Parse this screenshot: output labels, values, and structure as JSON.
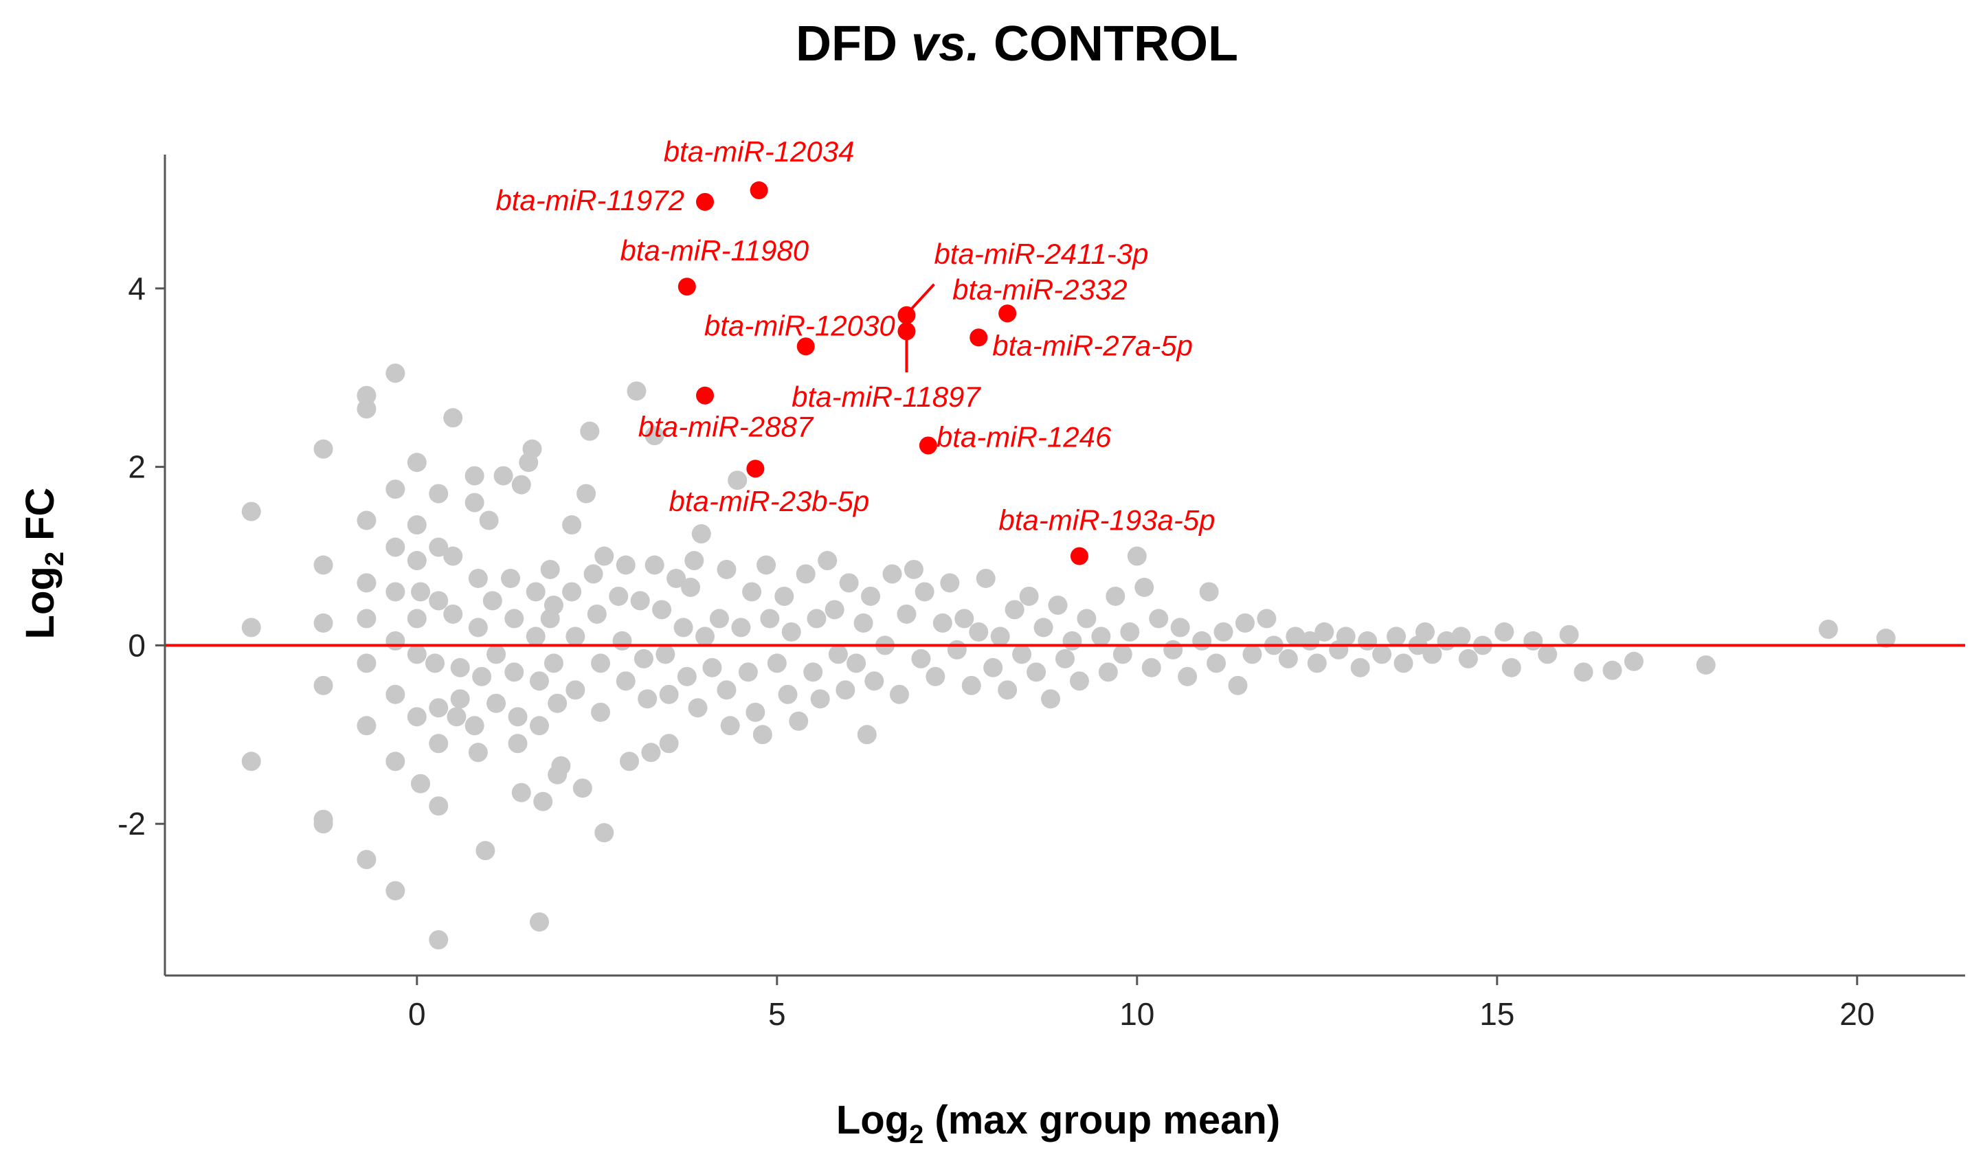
{
  "chart_data": {
    "type": "scatter",
    "title": "DFD vs. CONTROL",
    "title_parts": {
      "left": "DFD ",
      "middle": "vs.",
      "right": " CONTROL"
    },
    "xlabel_main": "Log",
    "xlabel_sub": "2",
    "xlabel_rest": " (max group mean)",
    "ylabel_main": "Log",
    "ylabel_sub": "2",
    "ylabel_rest": " FC",
    "xlim": [
      -3.5,
      21.5
    ],
    "ylim": [
      -3.7,
      5.5
    ],
    "xticks": [
      0,
      5,
      10,
      15,
      20
    ],
    "yticks": [
      -2,
      0,
      2,
      4
    ],
    "reference_line": {
      "y": 0,
      "color": "#ff0000"
    },
    "background_point_color": "#c8c8c8",
    "highlight_color": "#ff0000",
    "grid": false,
    "legend": "none",
    "highlighted": [
      {
        "label": "bta-miR-12034",
        "x": 4.75,
        "y": 5.1
      },
      {
        "label": "bta-miR-11972",
        "x": 4.0,
        "y": 4.97
      },
      {
        "label": "bta-miR-11980",
        "x": 3.75,
        "y": 4.02
      },
      {
        "label": "bta-miR-2411-3p",
        "x": 6.8,
        "y": 3.7
      },
      {
        "label": "bta-miR-2332",
        "x": 8.2,
        "y": 3.72
      },
      {
        "label": "bta-miR-12030",
        "x": 5.4,
        "y": 3.35
      },
      {
        "label": "bta-miR-11897",
        "x": 6.8,
        "y": 3.52
      },
      {
        "label": "bta-miR-27a-5p",
        "x": 7.8,
        "y": 3.45
      },
      {
        "label": "bta-miR-2887",
        "x": 4.0,
        "y": 2.8
      },
      {
        "label": "bta-miR-1246",
        "x": 7.1,
        "y": 2.24
      },
      {
        "label": "bta-miR-23b-5p",
        "x": 4.7,
        "y": 1.98
      },
      {
        "label": "bta-miR-193a-5p",
        "x": 9.2,
        "y": 1.0
      }
    ],
    "background_points": [
      [
        -2.3,
        1.5
      ],
      [
        -2.3,
        0.2
      ],
      [
        -2.3,
        -1.3
      ],
      [
        -1.3,
        2.2
      ],
      [
        -1.3,
        0.9
      ],
      [
        -1.3,
        0.25
      ],
      [
        -1.3,
        -0.45
      ],
      [
        -1.3,
        -1.95
      ],
      [
        -1.3,
        -2.0
      ],
      [
        -0.7,
        2.8
      ],
      [
        -0.7,
        2.65
      ],
      [
        -0.7,
        1.4
      ],
      [
        -0.7,
        0.7
      ],
      [
        -0.7,
        0.3
      ],
      [
        -0.7,
        -0.2
      ],
      [
        -0.7,
        -0.9
      ],
      [
        -0.7,
        -2.4
      ],
      [
        -0.3,
        3.05
      ],
      [
        -0.3,
        1.75
      ],
      [
        -0.3,
        1.1
      ],
      [
        -0.3,
        0.6
      ],
      [
        -0.3,
        0.05
      ],
      [
        -0.3,
        -0.55
      ],
      [
        -0.3,
        -1.3
      ],
      [
        -0.3,
        -2.75
      ],
      [
        0.0,
        2.05
      ],
      [
        0.0,
        1.35
      ],
      [
        0.0,
        0.95
      ],
      [
        0.05,
        0.6
      ],
      [
        0.0,
        0.3
      ],
      [
        0.0,
        -0.1
      ],
      [
        0.0,
        -0.8
      ],
      [
        0.05,
        -1.55
      ],
      [
        0.3,
        1.7
      ],
      [
        0.3,
        1.1
      ],
      [
        0.3,
        0.5
      ],
      [
        0.25,
        -0.2
      ],
      [
        0.3,
        -0.7
      ],
      [
        0.3,
        -1.1
      ],
      [
        0.3,
        -1.8
      ],
      [
        0.3,
        -3.3
      ],
      [
        0.5,
        2.55
      ],
      [
        0.5,
        1.0
      ],
      [
        0.5,
        0.35
      ],
      [
        0.6,
        -0.25
      ],
      [
        0.55,
        -0.8
      ],
      [
        0.6,
        -0.6
      ],
      [
        0.8,
        1.6
      ],
      [
        0.8,
        1.9
      ],
      [
        0.85,
        0.75
      ],
      [
        0.85,
        0.2
      ],
      [
        0.9,
        -0.35
      ],
      [
        0.8,
        -0.9
      ],
      [
        0.85,
        -1.2
      ],
      [
        0.95,
        -2.3
      ],
      [
        1.0,
        1.4
      ],
      [
        1.05,
        0.5
      ],
      [
        1.1,
        -0.1
      ],
      [
        1.1,
        -0.65
      ],
      [
        1.2,
        1.9
      ],
      [
        1.3,
        0.75
      ],
      [
        1.35,
        0.3
      ],
      [
        1.35,
        -0.3
      ],
      [
        1.4,
        -0.8
      ],
      [
        1.4,
        -1.1
      ],
      [
        1.45,
        1.8
      ],
      [
        1.45,
        -1.65
      ],
      [
        1.55,
        2.05
      ],
      [
        1.6,
        2.2
      ],
      [
        1.65,
        0.6
      ],
      [
        1.65,
        0.1
      ],
      [
        1.7,
        -0.4
      ],
      [
        1.7,
        -0.9
      ],
      [
        1.7,
        -3.1
      ],
      [
        1.75,
        -1.75
      ],
      [
        1.85,
        0.85
      ],
      [
        1.85,
        0.3
      ],
      [
        1.9,
        0.45
      ],
      [
        1.9,
        -0.2
      ],
      [
        1.95,
        -0.65
      ],
      [
        1.95,
        -1.45
      ],
      [
        2.0,
        -1.35
      ],
      [
        2.15,
        1.35
      ],
      [
        2.15,
        0.6
      ],
      [
        2.2,
        0.1
      ],
      [
        2.2,
        -0.5
      ],
      [
        2.3,
        -1.6
      ],
      [
        2.35,
        1.7
      ],
      [
        2.4,
        2.4
      ],
      [
        2.45,
        0.8
      ],
      [
        2.5,
        0.35
      ],
      [
        2.55,
        -0.2
      ],
      [
        2.55,
        -0.75
      ],
      [
        2.6,
        1.0
      ],
      [
        2.6,
        -2.1
      ],
      [
        2.8,
        0.55
      ],
      [
        2.85,
        0.05
      ],
      [
        2.9,
        -0.4
      ],
      [
        2.9,
        0.9
      ],
      [
        2.95,
        -1.3
      ],
      [
        3.05,
        2.85
      ],
      [
        3.1,
        0.5
      ],
      [
        3.15,
        -0.15
      ],
      [
        3.2,
        -0.6
      ],
      [
        3.25,
        -1.2
      ],
      [
        3.3,
        2.35
      ],
      [
        3.3,
        0.9
      ],
      [
        3.4,
        0.4
      ],
      [
        3.45,
        -0.1
      ],
      [
        3.5,
        -0.55
      ],
      [
        3.5,
        -1.1
      ],
      [
        3.6,
        0.75
      ],
      [
        3.7,
        0.2
      ],
      [
        3.75,
        -0.35
      ],
      [
        3.8,
        0.65
      ],
      [
        3.85,
        0.95
      ],
      [
        3.9,
        -0.7
      ],
      [
        3.95,
        1.25
      ],
      [
        4.0,
        0.1
      ],
      [
        4.1,
        -0.25
      ],
      [
        4.2,
        0.3
      ],
      [
        4.3,
        -0.5
      ],
      [
        4.3,
        0.85
      ],
      [
        4.35,
        -0.9
      ],
      [
        4.45,
        1.85
      ],
      [
        4.5,
        0.2
      ],
      [
        4.6,
        -0.3
      ],
      [
        4.65,
        0.6
      ],
      [
        4.7,
        -0.75
      ],
      [
        4.8,
        -1.0
      ],
      [
        4.85,
        0.9
      ],
      [
        4.9,
        0.3
      ],
      [
        5.0,
        -0.2
      ],
      [
        5.1,
        0.55
      ],
      [
        5.15,
        -0.55
      ],
      [
        5.2,
        0.15
      ],
      [
        5.3,
        -0.85
      ],
      [
        5.4,
        0.8
      ],
      [
        5.5,
        -0.3
      ],
      [
        5.55,
        0.3
      ],
      [
        5.6,
        -0.6
      ],
      [
        5.7,
        0.95
      ],
      [
        5.8,
        0.4
      ],
      [
        5.85,
        -0.1
      ],
      [
        5.95,
        -0.5
      ],
      [
        6.0,
        0.7
      ],
      [
        6.1,
        -0.2
      ],
      [
        6.2,
        0.25
      ],
      [
        6.25,
        -1.0
      ],
      [
        6.3,
        0.55
      ],
      [
        6.35,
        -0.4
      ],
      [
        6.5,
        0.0
      ],
      [
        6.6,
        0.8
      ],
      [
        6.7,
        -0.55
      ],
      [
        6.8,
        0.35
      ],
      [
        6.9,
        0.85
      ],
      [
        7.0,
        -0.15
      ],
      [
        7.05,
        0.6
      ],
      [
        7.2,
        -0.35
      ],
      [
        7.3,
        0.25
      ],
      [
        7.4,
        0.7
      ],
      [
        7.5,
        -0.05
      ],
      [
        7.6,
        0.3
      ],
      [
        7.7,
        -0.45
      ],
      [
        7.8,
        0.15
      ],
      [
        7.9,
        0.75
      ],
      [
        8.0,
        -0.25
      ],
      [
        8.1,
        0.1
      ],
      [
        8.2,
        -0.5
      ],
      [
        8.3,
        0.4
      ],
      [
        8.4,
        -0.1
      ],
      [
        8.5,
        0.55
      ],
      [
        8.6,
        -0.3
      ],
      [
        8.7,
        0.2
      ],
      [
        8.8,
        -0.6
      ],
      [
        8.9,
        0.45
      ],
      [
        9.0,
        -0.15
      ],
      [
        9.1,
        0.05
      ],
      [
        9.2,
        -0.4
      ],
      [
        9.3,
        0.3
      ],
      [
        9.5,
        0.1
      ],
      [
        9.6,
        -0.3
      ],
      [
        9.7,
        0.55
      ],
      [
        9.8,
        -0.1
      ],
      [
        9.9,
        0.15
      ],
      [
        10.0,
        1.0
      ],
      [
        10.1,
        0.65
      ],
      [
        10.2,
        -0.25
      ],
      [
        10.3,
        0.3
      ],
      [
        10.5,
        -0.05
      ],
      [
        10.6,
        0.2
      ],
      [
        10.7,
        -0.35
      ],
      [
        10.9,
        0.05
      ],
      [
        11.0,
        0.6
      ],
      [
        11.1,
        -0.2
      ],
      [
        11.2,
        0.15
      ],
      [
        11.4,
        -0.45
      ],
      [
        11.5,
        0.25
      ],
      [
        11.6,
        -0.1
      ],
      [
        11.8,
        0.3
      ],
      [
        11.9,
        0.0
      ],
      [
        12.1,
        -0.15
      ],
      [
        12.2,
        0.1
      ],
      [
        12.4,
        0.05
      ],
      [
        12.5,
        -0.2
      ],
      [
        12.6,
        0.15
      ],
      [
        12.8,
        -0.05
      ],
      [
        12.9,
        0.1
      ],
      [
        13.1,
        -0.25
      ],
      [
        13.2,
        0.05
      ],
      [
        13.4,
        -0.1
      ],
      [
        13.6,
        0.1
      ],
      [
        13.7,
        -0.2
      ],
      [
        13.9,
        0.0
      ],
      [
        14.0,
        0.15
      ],
      [
        14.1,
        -0.1
      ],
      [
        14.3,
        0.05
      ],
      [
        14.5,
        0.1
      ],
      [
        14.6,
        -0.15
      ],
      [
        14.8,
        0.0
      ],
      [
        15.1,
        0.15
      ],
      [
        15.2,
        -0.25
      ],
      [
        15.5,
        0.05
      ],
      [
        15.7,
        -0.1
      ],
      [
        16.0,
        0.12
      ],
      [
        16.2,
        -0.3
      ],
      [
        16.6,
        -0.28
      ],
      [
        16.9,
        -0.18
      ],
      [
        17.9,
        -0.22
      ],
      [
        19.6,
        0.18
      ],
      [
        20.4,
        0.08
      ]
    ]
  }
}
